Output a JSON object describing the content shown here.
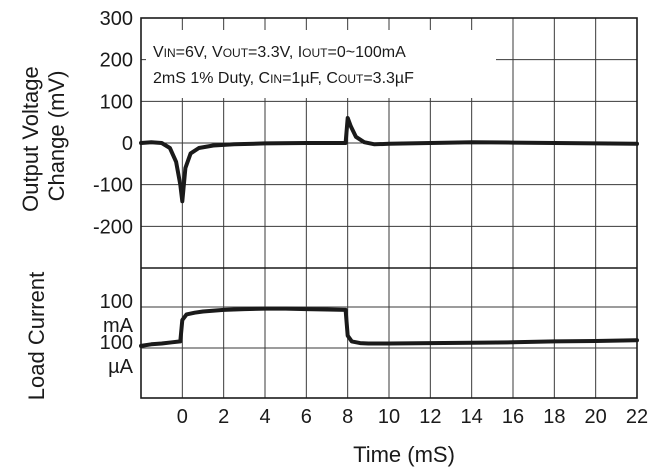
{
  "chart_data": [
    {
      "type": "line",
      "panel": "top",
      "ylabel_lines": [
        "Output Voltage",
        "Change (mV)"
      ],
      "xlim": [
        -2,
        22
      ],
      "ylim": [
        -300,
        300
      ],
      "yticks": [
        300,
        200,
        100,
        0,
        -100,
        -200
      ],
      "grid": true,
      "annotation": {
        "line1": {
          "V": "V",
          "IN_sub": "IN",
          "eq1": "=6V, V",
          "OUT_sub": "OUT",
          "eq2": "=3.3V, I",
          "OUT_sub2": "OUT",
          "eq3": "=0~100mA"
        },
        "line2": {
          "t1": "2mS 1% Duty, C",
          "IN_sub": "IN",
          "eq1": "=1µF, C",
          "OUT_sub": "OUT",
          "eq2": "=3.3µF"
        }
      },
      "series": [
        {
          "x": [
            -2,
            -1.5,
            -1,
            -0.6,
            -0.3,
            -0.1,
            0,
            0.15,
            0.4,
            0.8,
            1.5,
            2.5,
            4,
            6,
            7.9,
            8.0,
            8.15,
            8.4,
            8.8,
            9.3,
            10,
            12,
            14,
            16,
            18,
            20,
            22
          ],
          "y": [
            0,
            2,
            0,
            -12,
            -45,
            -100,
            -140,
            -60,
            -25,
            -12,
            -6,
            -3,
            -1,
            0,
            0,
            60,
            40,
            15,
            2,
            -3,
            -2,
            0,
            2,
            1,
            0,
            -1,
            -2
          ]
        }
      ]
    },
    {
      "type": "line",
      "panel": "bottom",
      "ylabel": "Load Current",
      "xlabel": "Time (mS)",
      "xlim": [
        -2,
        22
      ],
      "xticks": [
        0,
        2,
        4,
        6,
        8,
        10,
        12,
        14,
        16,
        18,
        20,
        22
      ],
      "ylevels": [
        {
          "label_top": "100",
          "label_bottom": "mA"
        },
        {
          "label_top": "100",
          "label_bottom": "µA"
        }
      ],
      "grid": true,
      "series": [
        {
          "x": [
            -2,
            -1.5,
            -1,
            -0.5,
            -0.1,
            0,
            0.2,
            0.6,
            1,
            2,
            3,
            4,
            5,
            6,
            7,
            7.9,
            8.0,
            8.2,
            8.6,
            9,
            10,
            12,
            14,
            16,
            18,
            20,
            22
          ],
          "level": [
            0.05,
            0.09,
            0.11,
            0.14,
            0.16,
            0.68,
            0.82,
            0.86,
            0.89,
            0.93,
            0.95,
            0.96,
            0.96,
            0.95,
            0.94,
            0.93,
            0.3,
            0.16,
            0.12,
            0.11,
            0.11,
            0.12,
            0.13,
            0.14,
            0.16,
            0.17,
            0.19
          ]
        }
      ]
    }
  ]
}
